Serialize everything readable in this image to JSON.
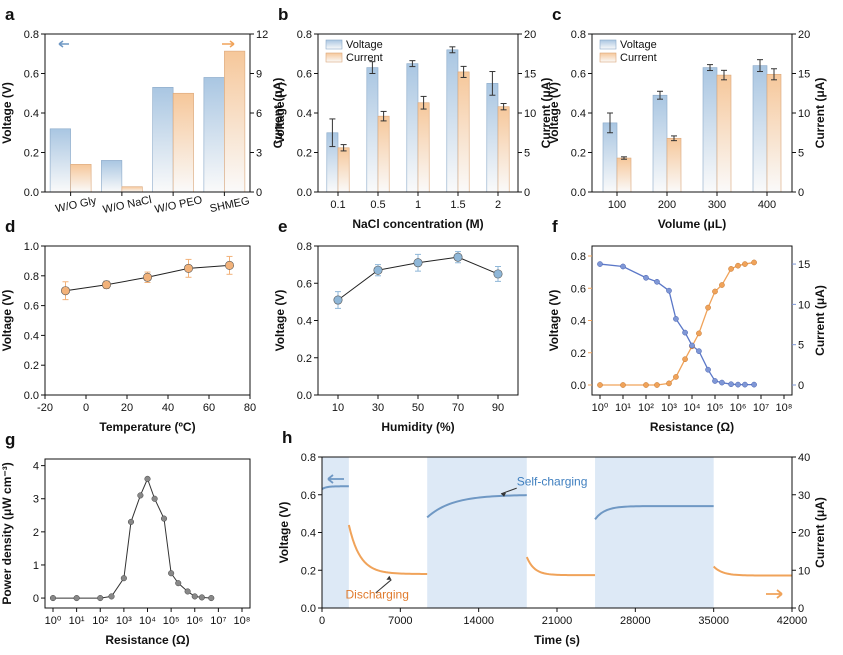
{
  "colors": {
    "blue": "#6f98c4",
    "blue_light": "#dce8f3",
    "orange": "#f0a35a",
    "orange_light": "#fbe4cf",
    "gray": "#6e6e6e",
    "span": "#dde9f6"
  },
  "chart_data": [
    {
      "id": "a",
      "panel_label": "a",
      "type": "bar",
      "categories": [
        "W/O Gly",
        "W/O NaCl",
        "W/O PEO",
        "SHMEG"
      ],
      "series": [
        {
          "name": "",
          "axis": "left",
          "values": [
            0.32,
            0.16,
            0.53,
            0.58
          ]
        },
        {
          "name": "",
          "axis": "right",
          "values": [
            2.1,
            0.4,
            7.5,
            10.7
          ]
        }
      ],
      "ylabel": "Voltage (V)",
      "ylim": [
        0,
        0.8
      ],
      "yticks": [
        "0.0",
        "0.2",
        "0.4",
        "0.6",
        "0.8"
      ],
      "y2label": "Current (μA)",
      "y2lim": [
        0,
        12
      ],
      "y2ticks": [
        "0",
        "3",
        "6",
        "9",
        "12"
      ],
      "legend": "none",
      "arrows": "top-left blue left, top-right orange right"
    },
    {
      "id": "b",
      "panel_label": "b",
      "type": "bar",
      "categories": [
        "0.1",
        "0.5",
        "1",
        "1.5",
        "2"
      ],
      "series": [
        {
          "name": "Voltage",
          "axis": "left",
          "values": [
            0.3,
            0.63,
            0.65,
            0.72,
            0.55
          ],
          "err": [
            0.07,
            0.03,
            0.015,
            0.015,
            0.06
          ]
        },
        {
          "name": "Current",
          "axis": "right",
          "values": [
            5.6,
            9.6,
            11.3,
            15.2,
            10.8
          ],
          "err": [
            0.4,
            0.6,
            0.8,
            0.7,
            0.4
          ]
        }
      ],
      "xlabel": "NaCl concentration (M)",
      "ylabel": "Voltage (V)",
      "ylim": [
        0,
        0.8
      ],
      "yticks": [
        "0.0",
        "0.2",
        "0.4",
        "0.6",
        "0.8"
      ],
      "y2label": "Current (μA)",
      "y2lim": [
        0,
        20
      ],
      "y2ticks": [
        "0",
        "5",
        "10",
        "15",
        "20"
      ],
      "legend": "top-left"
    },
    {
      "id": "c",
      "panel_label": "c",
      "type": "bar",
      "categories": [
        "100",
        "200",
        "300",
        "400"
      ],
      "series": [
        {
          "name": "Voltage",
          "axis": "left",
          "values": [
            0.35,
            0.49,
            0.63,
            0.64
          ],
          "err": [
            0.05,
            0.02,
            0.015,
            0.03
          ]
        },
        {
          "name": "Current",
          "axis": "right",
          "values": [
            4.3,
            6.8,
            14.8,
            14.9
          ],
          "err": [
            0.15,
            0.3,
            0.6,
            0.7
          ]
        }
      ],
      "xlabel": "Volume (μL)",
      "ylabel": "Voltage (V)",
      "ylim": [
        0,
        0.8
      ],
      "yticks": [
        "0.0",
        "0.2",
        "0.4",
        "0.6",
        "0.8"
      ],
      "y2label": "Current (μA)",
      "y2lim": [
        0,
        20
      ],
      "y2ticks": [
        "0",
        "5",
        "10",
        "15",
        "20"
      ],
      "legend": "top-left"
    },
    {
      "id": "d",
      "panel_label": "d",
      "type": "line",
      "series": [
        {
          "name": "",
          "x": [
            -10,
            10,
            30,
            50,
            70
          ],
          "values": [
            0.7,
            0.74,
            0.79,
            0.85,
            0.87
          ],
          "err": [
            0.06,
            0.025,
            0.035,
            0.06,
            0.06
          ]
        }
      ],
      "xlabel": "Temperature (ºC)",
      "xlim": [
        -20,
        80
      ],
      "xticks": [
        "-20",
        "0",
        "20",
        "40",
        "60",
        "80"
      ],
      "ylabel": "Voltage (V)",
      "ylim": [
        0,
        1.0
      ],
      "yticks": [
        "0.0",
        "0.2",
        "0.4",
        "0.6",
        "0.8",
        "1.0"
      ]
    },
    {
      "id": "e",
      "panel_label": "e",
      "type": "line",
      "series": [
        {
          "name": "",
          "x": [
            10,
            30,
            50,
            70,
            90
          ],
          "values": [
            0.51,
            0.67,
            0.71,
            0.74,
            0.65
          ],
          "err": [
            0.045,
            0.03,
            0.045,
            0.03,
            0.04
          ]
        }
      ],
      "xlabel": "Humidity (%)",
      "xlim": [
        0,
        100
      ],
      "xticks": [
        "10",
        "30",
        "50",
        "70",
        "90"
      ],
      "ylabel": "Voltage (V)",
      "ylim": [
        0,
        0.8
      ],
      "yticks": [
        "0.0",
        "0.2",
        "0.4",
        "0.6",
        "0.8"
      ]
    },
    {
      "id": "f",
      "panel_label": "f",
      "type": "line",
      "xscale": "log",
      "series": [
        {
          "name": "Voltage",
          "axis": "left",
          "x": [
            1,
            10,
            100,
            300,
            1000,
            2000,
            5000,
            10000,
            20000,
            50000,
            100000,
            200000,
            500000,
            1000000,
            2000000,
            5000000
          ],
          "values": [
            0,
            0,
            0,
            0,
            0.01,
            0.05,
            0.16,
            0.24,
            0.32,
            0.48,
            0.58,
            0.62,
            0.72,
            0.74,
            0.75,
            0.76
          ]
        },
        {
          "name": "Current",
          "axis": "right",
          "x": [
            1,
            10,
            100,
            300,
            1000,
            2000,
            5000,
            10000,
            20000,
            50000,
            100000,
            200000,
            500000,
            1000000,
            2000000,
            5000000
          ],
          "values": [
            15,
            14.7,
            13.3,
            12.8,
            11.7,
            8.2,
            6.5,
            4.9,
            4.2,
            1.9,
            0.5,
            0.3,
            0.1,
            0.05,
            0.05,
            0.05
          ]
        }
      ],
      "xlabel": "Resistance (Ω)",
      "xticks": [
        "10⁰",
        "10¹",
        "10²",
        "10³",
        "10⁴",
        "10⁵",
        "10⁶",
        "10⁷",
        "10⁸"
      ],
      "ylabel": "Voltage (V)",
      "ylim": [
        0,
        0.8
      ],
      "yticks": [
        "0.0",
        "0.2",
        "0.4",
        "0.6",
        "0.8"
      ],
      "y2label": "Current (μA)",
      "y2lim": [
        0,
        16
      ],
      "y2ticks": [
        "0",
        "5",
        "10",
        "15"
      ]
    },
    {
      "id": "g",
      "panel_label": "g",
      "type": "line",
      "xscale": "log",
      "series": [
        {
          "name": "",
          "x": [
            1,
            10,
            100,
            300,
            1000,
            2000,
            5000,
            10000,
            20000,
            50000,
            100000,
            200000,
            500000,
            1000000,
            2000000,
            5000000
          ],
          "values": [
            0,
            0,
            0,
            0.05,
            0.6,
            2.3,
            3.1,
            3.6,
            3.0,
            2.4,
            0.75,
            0.45,
            0.2,
            0.05,
            0.02,
            0
          ]
        }
      ],
      "xlabel": "Resistance (Ω)",
      "xticks": [
        "10⁰",
        "10¹",
        "10²",
        "10³",
        "10⁴",
        "10⁵",
        "10⁶",
        "10⁷",
        "10⁸"
      ],
      "ylabel": "Power density (μW cm⁻³)",
      "ylim": [
        -0.3,
        4.2
      ],
      "yticks": [
        "0",
        "1",
        "2",
        "3",
        "4"
      ]
    },
    {
      "id": "h",
      "panel_label": "h",
      "type": "line",
      "xlabel": "Time (s)",
      "xlim": [
        0,
        42000
      ],
      "xticks": [
        "0",
        "7000",
        "14000",
        "21000",
        "28000",
        "35000",
        "42000"
      ],
      "ylabel": "Voltage (V)",
      "ylim": [
        0,
        0.8
      ],
      "yticks": [
        "0.0",
        "0.2",
        "0.4",
        "0.6",
        "0.8"
      ],
      "y2label": "Current (μA)",
      "y2lim": [
        0,
        40
      ],
      "y2ticks": [
        "0",
        "10",
        "20",
        "30",
        "40"
      ],
      "annotations": [
        "Self-charging",
        "Discharging"
      ],
      "shaded_ranges": [
        [
          0,
          2400
        ],
        [
          9400,
          18300
        ],
        [
          24400,
          35000
        ]
      ],
      "series": [
        {
          "name": "",
          "axis": "left",
          "values_desc": "voltage during self-charging segments"
        },
        {
          "name": "",
          "axis": "right",
          "values_desc": "current decay during discharging segments"
        }
      ]
    }
  ]
}
